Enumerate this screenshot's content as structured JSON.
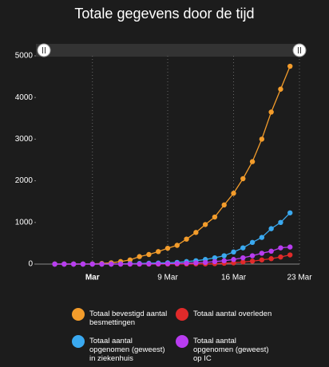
{
  "chart_data": {
    "type": "line",
    "title": "Totale gegevens door de tijd",
    "x": [
      "26 Feb",
      "27 Feb",
      "28 Feb",
      "29 Feb",
      "1 Mar",
      "2 Mar",
      "3 Mar",
      "4 Mar",
      "5 Mar",
      "6 Mar",
      "7 Mar",
      "8 Mar",
      "9 Mar",
      "10 Mar",
      "11 Mar",
      "12 Mar",
      "13 Mar",
      "14 Mar",
      "15 Mar",
      "16 Mar",
      "17 Mar",
      "18 Mar",
      "19 Mar",
      "20 Mar",
      "21 Mar",
      "22 Mar"
    ],
    "series": [
      {
        "name": "Totaal bevestigd aantal besmettingen",
        "color": "#f39c2b",
        "values": [
          1,
          1,
          1,
          2,
          5,
          15,
          30,
          60,
          100,
          180,
          230,
          300,
          380,
          450,
          600,
          760,
          950,
          1130,
          1420,
          1700,
          2050,
          2460,
          3000,
          3650,
          4200,
          4750
        ]
      },
      {
        "name": "Totaal aantal overleden",
        "color": "#e02a2a",
        "values": [
          0,
          0,
          0,
          0,
          0,
          0,
          0,
          0,
          0,
          0,
          1,
          1,
          2,
          3,
          3,
          4,
          5,
          10,
          20,
          30,
          50,
          70,
          100,
          130,
          170,
          220
        ]
      },
      {
        "name": "Totaal aantal opgenomen (geweest) in ziekenhuis",
        "color": "#3aa9f0",
        "values": [
          0,
          0,
          0,
          0,
          0,
          0,
          0,
          5,
          10,
          15,
          20,
          25,
          30,
          40,
          60,
          80,
          110,
          150,
          200,
          290,
          390,
          520,
          640,
          850,
          1000,
          1230
        ]
      },
      {
        "name": "Totaal aantal opgenomen (geweest) op IC",
        "color": "#b83cf0",
        "values": [
          0,
          0,
          0,
          0,
          0,
          0,
          0,
          0,
          2,
          3,
          5,
          7,
          10,
          15,
          20,
          30,
          40,
          60,
          80,
          110,
          150,
          200,
          260,
          310,
          390,
          410
        ]
      }
    ],
    "xlim": [
      "24 Feb",
      "23 Mar"
    ],
    "xticks": [
      {
        "value": "1 Mar",
        "label": "Mar"
      },
      "9 Mar",
      "16 Mar",
      "23 Mar"
    ],
    "ylim": [
      0,
      5000
    ],
    "yticks": [
      0,
      1000,
      2000,
      3000,
      4000,
      5000
    ],
    "grid": true
  }
}
